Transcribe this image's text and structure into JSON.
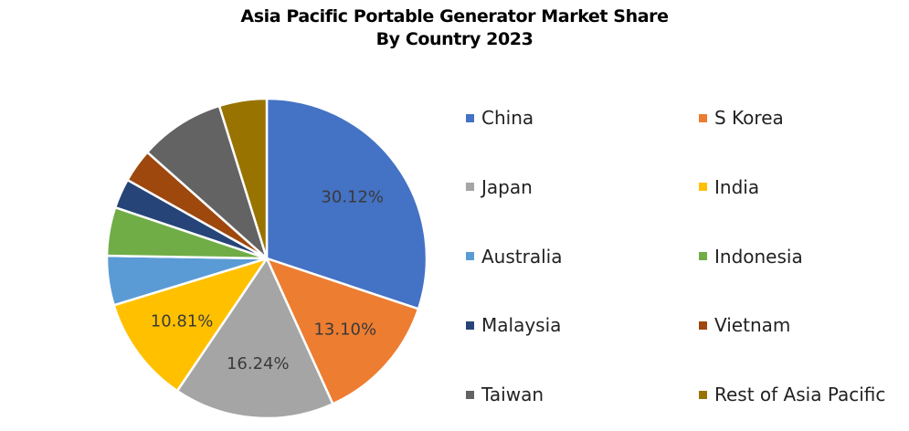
{
  "chart_data": {
    "type": "pie",
    "title": "Asia Pacific Portable Generator Market Share",
    "subtitle": "By Country 2023",
    "legend_position": "right",
    "slices": [
      {
        "name": "China",
        "value": 30.12,
        "label": "30.12%",
        "color": "#4472C4"
      },
      {
        "name": "S Korea",
        "value": 13.1,
        "label": "13.10%",
        "color": "#ED7D31"
      },
      {
        "name": "Japan",
        "value": 16.24,
        "label": "16.24%",
        "color": "#A5A5A5"
      },
      {
        "name": "India",
        "value": 10.81,
        "label": "10.81%",
        "color": "#FFC000"
      },
      {
        "name": "Australia",
        "value": 5.0,
        "label": "",
        "color": "#5B9BD5"
      },
      {
        "name": "Indonesia",
        "value": 4.9,
        "label": "",
        "color": "#70AD47"
      },
      {
        "name": "Malaysia",
        "value": 3.0,
        "label": "",
        "color": "#264478"
      },
      {
        "name": "Vietnam",
        "value": 3.4,
        "label": "",
        "color": "#9E480E"
      },
      {
        "name": "Taiwan",
        "value": 8.63,
        "label": "",
        "color": "#636363"
      },
      {
        "name": "Rest of Asia Pacific",
        "value": 4.8,
        "label": "",
        "color": "#997300"
      }
    ]
  }
}
